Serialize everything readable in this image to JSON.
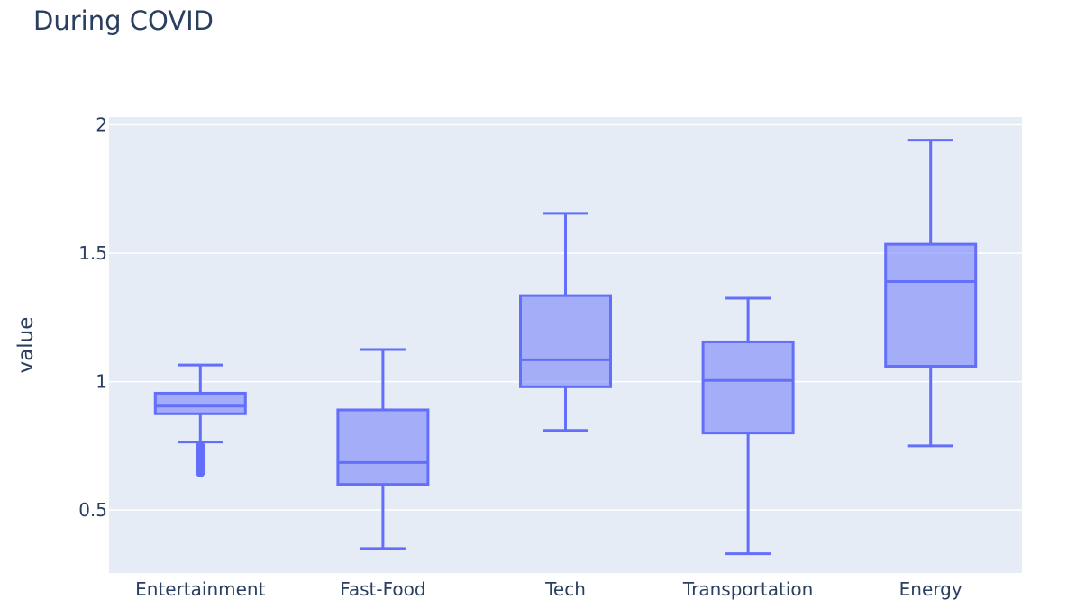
{
  "chart_data": {
    "type": "box",
    "title": "During COVID",
    "xlabel": "",
    "ylabel": "value",
    "ylim": [
      0.255,
      2.03
    ],
    "yticks": [
      0.5,
      1,
      1.5,
      2
    ],
    "ytick_labels": [
      "0.5",
      "1",
      "1.5",
      "2"
    ],
    "grid": true,
    "legend": "none",
    "colors": {
      "plot_bg": "#e5ecf6",
      "grid": "#ffffff",
      "box_line": "#636efa",
      "box_fill": "rgba(99,110,250,0.5)",
      "text": "#2a3f5f"
    },
    "categories": [
      "Entertainment",
      "Fast-Food",
      "Tech",
      "Transportation",
      "Energy"
    ],
    "boxes": [
      {
        "category": "Entertainment",
        "lower_whisker": 0.765,
        "q1": 0.875,
        "median": 0.905,
        "q3": 0.955,
        "upper_whisker": 1.065,
        "outliers": [
          0.645,
          0.66,
          0.675,
          0.69,
          0.705,
          0.72,
          0.735,
          0.75
        ]
      },
      {
        "category": "Fast-Food",
        "lower_whisker": 0.35,
        "q1": 0.6,
        "median": 0.685,
        "q3": 0.89,
        "upper_whisker": 1.125,
        "outliers": []
      },
      {
        "category": "Tech",
        "lower_whisker": 0.81,
        "q1": 0.98,
        "median": 1.085,
        "q3": 1.335,
        "upper_whisker": 1.655,
        "outliers": []
      },
      {
        "category": "Transportation",
        "lower_whisker": 0.33,
        "q1": 0.8,
        "median": 1.005,
        "q3": 1.155,
        "upper_whisker": 1.325,
        "outliers": []
      },
      {
        "category": "Energy",
        "lower_whisker": 0.75,
        "q1": 1.06,
        "median": 1.39,
        "q3": 1.535,
        "upper_whisker": 1.94,
        "outliers": []
      }
    ]
  }
}
